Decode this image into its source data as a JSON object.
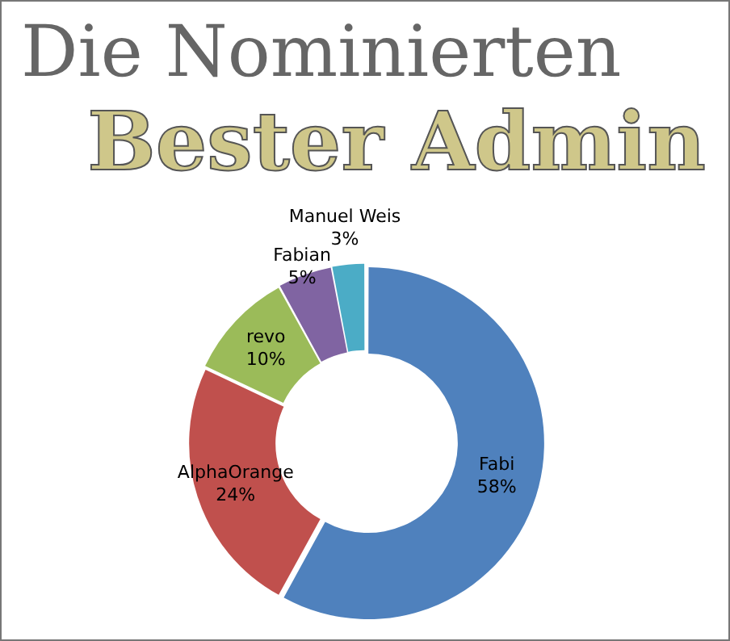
{
  "chart_data": {
    "type": "donut",
    "title": "Die Nominierten",
    "subtitle": "Bester Admin",
    "categories": [
      "Fabi",
      "AlphaOrange",
      "revo",
      "Fabian",
      "Manuel Weis"
    ],
    "values": [
      58,
      24,
      10,
      5,
      3
    ],
    "colors": [
      "#4f81bd",
      "#c0504d",
      "#9bbb59",
      "#8064a2",
      "#4bacc6"
    ],
    "value_labels": [
      "58%",
      "24%",
      "10%",
      "5%",
      "3%"
    ],
    "legend": false
  }
}
